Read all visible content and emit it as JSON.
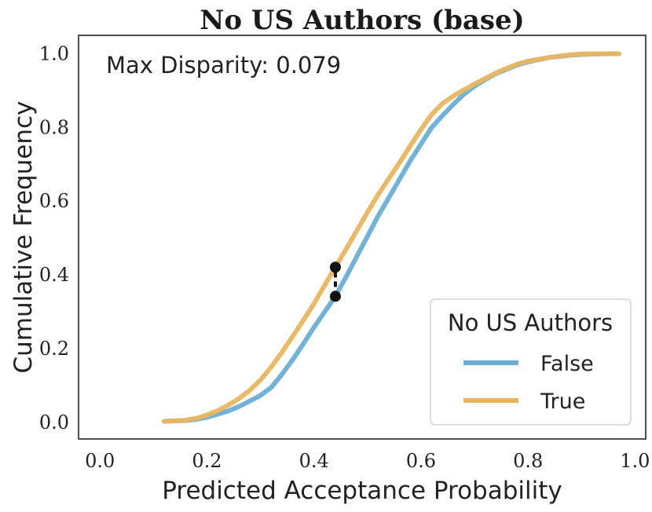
{
  "chart_data": {
    "type": "line",
    "title": "No US Authors (base)",
    "xlabel": "Predicted Acceptance Probability",
    "ylabel": "Cumulative Frequency",
    "xlim": [
      -0.04,
      1.02
    ],
    "ylim": [
      -0.045,
      1.05
    ],
    "xticks": [
      0.0,
      0.2,
      0.4,
      0.6,
      0.8,
      1.0
    ],
    "yticks": [
      0.0,
      0.2,
      0.4,
      0.6,
      0.8,
      1.0
    ],
    "xtick_labels": [
      "0.0",
      "0.2",
      "0.4",
      "0.6",
      "0.8",
      "1.0"
    ],
    "ytick_labels": [
      "0.0",
      "0.2",
      "0.4",
      "0.6",
      "0.8",
      "1.0"
    ],
    "grid": false,
    "annotation": "Max Disparity: 0.079",
    "disparity_marker": {
      "x": 0.44,
      "y_low": 0.342,
      "y_high": 0.421
    },
    "legend": {
      "title": "No US Authors",
      "placement": "lower-right"
    },
    "series": [
      {
        "name": "False",
        "color": "#6aaed6",
        "x": [
          0.12,
          0.16,
          0.18,
          0.2,
          0.22,
          0.24,
          0.26,
          0.28,
          0.3,
          0.32,
          0.34,
          0.36,
          0.38,
          0.4,
          0.42,
          0.44,
          0.46,
          0.48,
          0.5,
          0.52,
          0.54,
          0.56,
          0.58,
          0.6,
          0.62,
          0.64,
          0.66,
          0.68,
          0.7,
          0.72,
          0.74,
          0.76,
          0.78,
          0.8,
          0.82,
          0.84,
          0.86,
          0.88,
          0.9,
          0.92,
          0.95,
          0.97
        ],
        "y": [
          0.003,
          0.005,
          0.008,
          0.014,
          0.022,
          0.031,
          0.043,
          0.058,
          0.073,
          0.095,
          0.13,
          0.17,
          0.213,
          0.258,
          0.3,
          0.342,
          0.395,
          0.45,
          0.505,
          0.56,
          0.61,
          0.66,
          0.71,
          0.755,
          0.8,
          0.832,
          0.862,
          0.89,
          0.912,
          0.93,
          0.946,
          0.958,
          0.97,
          0.978,
          0.984,
          0.99,
          0.993,
          0.996,
          0.998,
          0.999,
          1.0,
          1.0
        ]
      },
      {
        "name": "True",
        "color": "#e9b55f",
        "x": [
          0.12,
          0.16,
          0.18,
          0.2,
          0.22,
          0.24,
          0.26,
          0.28,
          0.3,
          0.32,
          0.34,
          0.36,
          0.38,
          0.4,
          0.42,
          0.44,
          0.46,
          0.48,
          0.5,
          0.52,
          0.54,
          0.56,
          0.58,
          0.6,
          0.62,
          0.64,
          0.66,
          0.68,
          0.7,
          0.72,
          0.74,
          0.76,
          0.78,
          0.8,
          0.82,
          0.84,
          0.86,
          0.88,
          0.9,
          0.92,
          0.95,
          0.97
        ],
        "y": [
          0.003,
          0.006,
          0.011,
          0.02,
          0.032,
          0.047,
          0.065,
          0.087,
          0.115,
          0.15,
          0.19,
          0.233,
          0.277,
          0.322,
          0.372,
          0.421,
          0.47,
          0.52,
          0.57,
          0.618,
          0.662,
          0.705,
          0.75,
          0.795,
          0.835,
          0.865,
          0.885,
          0.902,
          0.918,
          0.933,
          0.948,
          0.96,
          0.972,
          0.98,
          0.985,
          0.99,
          0.994,
          0.997,
          0.999,
          1.0,
          1.0,
          1.0
        ]
      }
    ]
  }
}
